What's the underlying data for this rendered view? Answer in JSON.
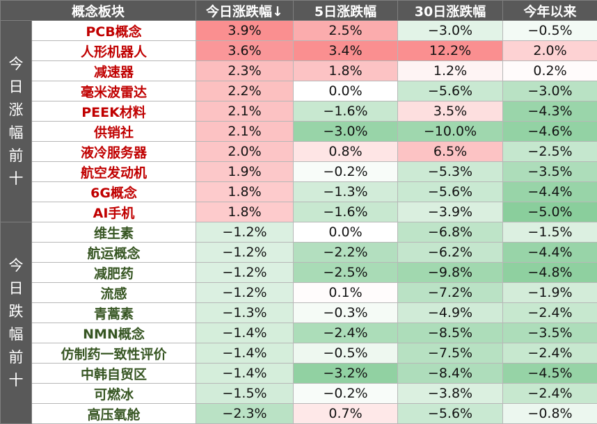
{
  "headers": [
    "概念板块",
    "今日涨跌幅↓",
    "5日涨跌幅",
    "30日涨跌幅",
    "今年以来"
  ],
  "groups": [
    {
      "label": [
        "今",
        "日",
        "涨",
        "幅",
        "前",
        "十"
      ],
      "direction": "up",
      "rows": [
        {
          "name": "PCB概念",
          "today": "3.9%",
          "d5": "2.5%",
          "d30": "−3.0%",
          "ytd": "−0.5%"
        },
        {
          "name": "人形机器人",
          "today": "3.6%",
          "d5": "3.4%",
          "d30": "12.2%",
          "ytd": "2.0%"
        },
        {
          "name": "减速器",
          "today": "2.3%",
          "d5": "1.8%",
          "d30": "1.2%",
          "ytd": "0.2%"
        },
        {
          "name": "毫米波雷达",
          "today": "2.2%",
          "d5": "0.0%",
          "d30": "−5.6%",
          "ytd": "−3.0%"
        },
        {
          "name": "PEEK材料",
          "today": "2.1%",
          "d5": "−1.6%",
          "d30": "3.5%",
          "ytd": "−4.3%"
        },
        {
          "name": "供销社",
          "today": "2.1%",
          "d5": "−3.0%",
          "d30": "−10.0%",
          "ytd": "−4.6%"
        },
        {
          "name": "液冷服务器",
          "today": "2.0%",
          "d5": "0.8%",
          "d30": "6.5%",
          "ytd": "−2.5%"
        },
        {
          "name": "航空发动机",
          "today": "1.9%",
          "d5": "−0.2%",
          "d30": "−5.3%",
          "ytd": "−3.5%"
        },
        {
          "name": "6G概念",
          "today": "1.8%",
          "d5": "−1.3%",
          "d30": "−5.6%",
          "ytd": "−4.4%"
        },
        {
          "name": "AI手机",
          "today": "1.8%",
          "d5": "−1.6%",
          "d30": "−3.9%",
          "ytd": "−5.0%"
        }
      ]
    },
    {
      "label": [
        "今",
        "日",
        "跌",
        "幅",
        "前",
        "十"
      ],
      "direction": "down",
      "rows": [
        {
          "name": "维生素",
          "today": "−1.2%",
          "d5": "0.0%",
          "d30": "−6.8%",
          "ytd": "−1.5%"
        },
        {
          "name": "航运概念",
          "today": "−1.2%",
          "d5": "−2.2%",
          "d30": "−6.2%",
          "ytd": "−4.4%"
        },
        {
          "name": "减肥药",
          "today": "−1.2%",
          "d5": "−2.5%",
          "d30": "−9.8%",
          "ytd": "−4.8%"
        },
        {
          "name": "流感",
          "today": "−1.2%",
          "d5": "0.1%",
          "d30": "−7.2%",
          "ytd": "−1.9%"
        },
        {
          "name": "青蒿素",
          "today": "−1.3%",
          "d5": "−0.3%",
          "d30": "−4.9%",
          "ytd": "−2.4%"
        },
        {
          "name": "NMN概念",
          "today": "−1.4%",
          "d5": "−2.4%",
          "d30": "−8.5%",
          "ytd": "−3.5%"
        },
        {
          "name": "仿制药一致性评价",
          "today": "−1.4%",
          "d5": "−0.5%",
          "d30": "−7.5%",
          "ytd": "−2.4%"
        },
        {
          "name": "中韩自贸区",
          "today": "−1.4%",
          "d5": "−3.2%",
          "d30": "−8.4%",
          "ytd": "−4.5%"
        },
        {
          "name": "可燃冰",
          "today": "−1.5%",
          "d5": "−0.2%",
          "d30": "−3.8%",
          "ytd": "−2.4%"
        },
        {
          "name": "高压氧舱",
          "today": "−2.3%",
          "d5": "0.7%",
          "d30": "−5.6%",
          "ytd": "−0.8%"
        }
      ]
    }
  ],
  "colors": {
    "header_bg": "#595959",
    "gain_text": "#c00000",
    "loss_text": "#375623",
    "gain_fill": "#f8696b",
    "loss_fill": "#63be7b"
  }
}
